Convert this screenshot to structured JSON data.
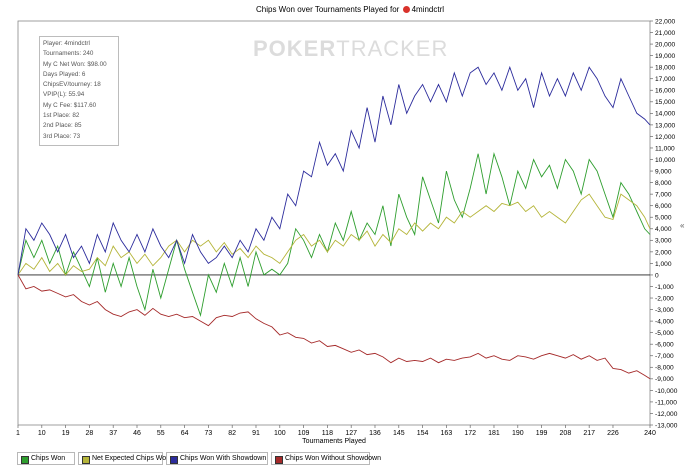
{
  "title": {
    "text": "Chips Won over Tournaments Played for",
    "player": "4mindctrl"
  },
  "watermark": {
    "left": "POKER",
    "right": "TRACKER"
  },
  "stats_box": [
    "Player: 4mindctrl",
    "Tournaments: 240",
    "My C Net Won: $98.00",
    "Days Played: 6",
    "ChipsEV/tourney: 18",
    "VPIP(L): 55.94",
    "My C Fee: $117.60",
    "1st Place: 82",
    "2nd Place: 85",
    "3rd Place: 73"
  ],
  "side_mark": "«",
  "legend": [
    {
      "label": "Chips Won",
      "color": "#2e9e2e"
    },
    {
      "label": "Net Expected Chips Won",
      "color": "#b5b53a"
    },
    {
      "label": "Chips Won With Showdown",
      "color": "#2c2c9c"
    },
    {
      "label": "Chips Won Without Showdown",
      "color": "#a52a2a"
    }
  ],
  "chart_data": {
    "type": "line",
    "title": "Chips Won over Tournaments Played for 4mindctrl",
    "xlabel": "Tournaments Played",
    "ylabel": "",
    "xlim": [
      1,
      240
    ],
    "ylim": [
      -13000,
      22000
    ],
    "x_ticks": [
      1,
      10,
      19,
      28,
      37,
      46,
      55,
      64,
      73,
      82,
      91,
      100,
      109,
      118,
      127,
      136,
      145,
      154,
      163,
      172,
      181,
      190,
      199,
      208,
      217,
      226,
      240
    ],
    "y_ticks": [
      -13000,
      -12000,
      -11000,
      -10000,
      -9000,
      -8000,
      -7000,
      -6000,
      -5000,
      -4000,
      -3000,
      -2000,
      -1000,
      0,
      1000,
      2000,
      3000,
      4000,
      5000,
      6000,
      7000,
      8000,
      9000,
      10000,
      11000,
      12000,
      13000,
      14000,
      15000,
      16000,
      17000,
      18000,
      19000,
      20000,
      21000,
      22000
    ],
    "y_tick_labels": [
      "-13,000",
      "-12,000",
      "-11,000",
      "-10,000",
      "-9,000",
      "-8,000",
      "-7,000",
      "-6,000",
      "-5,000",
      "-4,000",
      "-3,000",
      "-2,000",
      "-1,000",
      "0",
      "1,000",
      "2,000",
      "3,000",
      "4,000",
      "5,000",
      "6,000",
      "7,000",
      "8,000",
      "9,000",
      "10,000",
      "11,000",
      "12,000",
      "13,000",
      "14,000",
      "15,000",
      "16,000",
      "17,000",
      "18,000",
      "19,000",
      "20,000",
      "21,000",
      "22,000"
    ],
    "grid": false,
    "legend_position": "bottom",
    "series": [
      {
        "name": "Chips Won",
        "color": "#2e9e2e",
        "x": [
          1,
          4,
          7,
          10,
          13,
          16,
          19,
          22,
          25,
          28,
          31,
          34,
          37,
          40,
          43,
          46,
          49,
          52,
          55,
          58,
          61,
          64,
          67,
          70,
          73,
          76,
          79,
          82,
          85,
          88,
          91,
          94,
          97,
          100,
          103,
          106,
          109,
          112,
          115,
          118,
          121,
          124,
          127,
          130,
          133,
          136,
          139,
          142,
          145,
          148,
          151,
          154,
          157,
          160,
          163,
          166,
          169,
          172,
          175,
          178,
          181,
          184,
          187,
          190,
          193,
          196,
          199,
          202,
          205,
          208,
          211,
          214,
          217,
          220,
          223,
          226,
          229,
          232,
          235,
          238,
          240
        ],
        "y": [
          0,
          3000,
          1500,
          3000,
          1000,
          2500,
          0,
          2000,
          500,
          -1000,
          1500,
          -1500,
          1000,
          -1000,
          1500,
          -1000,
          -3000,
          500,
          -2000,
          500,
          3000,
          500,
          -1500,
          -3500,
          0,
          -1500,
          1000,
          -1000,
          1500,
          -1000,
          2000,
          0,
          500,
          0,
          1000,
          4000,
          3000,
          1500,
          3500,
          2000,
          4500,
          3000,
          5500,
          3000,
          4500,
          3500,
          6000,
          2500,
          7000,
          5000,
          3500,
          8500,
          6500,
          4500,
          9000,
          6500,
          5000,
          7500,
          10500,
          7000,
          10500,
          8500,
          6000,
          9000,
          7500,
          10000,
          8500,
          9500,
          7500,
          10000,
          9000,
          7000,
          10000,
          9000,
          7000,
          5000,
          8000,
          7000,
          5500,
          4000,
          3500
        ]
      },
      {
        "name": "Net Expected Chips Won",
        "color": "#b5b53a",
        "x": [
          1,
          4,
          7,
          10,
          13,
          16,
          19,
          22,
          25,
          28,
          31,
          34,
          37,
          40,
          43,
          46,
          49,
          52,
          55,
          58,
          61,
          64,
          67,
          70,
          73,
          76,
          79,
          82,
          85,
          88,
          91,
          94,
          97,
          100,
          103,
          106,
          109,
          112,
          115,
          118,
          121,
          124,
          127,
          130,
          133,
          136,
          139,
          142,
          145,
          148,
          151,
          154,
          157,
          160,
          163,
          166,
          169,
          172,
          175,
          178,
          181,
          184,
          187,
          190,
          193,
          196,
          199,
          202,
          205,
          208,
          211,
          214,
          217,
          220,
          223,
          226,
          229,
          232,
          235,
          238,
          240
        ],
        "y": [
          0,
          1000,
          500,
          1500,
          300,
          1000,
          0,
          800,
          300,
          500,
          1500,
          800,
          2500,
          1500,
          2000,
          1000,
          1800,
          800,
          1500,
          2500,
          3000,
          2000,
          3000,
          2500,
          3000,
          2000,
          2800,
          1800,
          2300,
          1500,
          2500,
          1800,
          1500,
          1000,
          2000,
          3000,
          3500,
          2500,
          3000,
          2000,
          3000,
          2500,
          3500,
          3000,
          3800,
          2500,
          3500,
          2800,
          4000,
          3500,
          4500,
          3800,
          4500,
          4000,
          5000,
          4500,
          5500,
          5000,
          5500,
          6000,
          5500,
          6200,
          6000,
          6300,
          5500,
          6000,
          5000,
          5500,
          5000,
          4500,
          5500,
          6500,
          7000,
          6000,
          5000,
          4800,
          7000,
          6500,
          6000,
          5000,
          4000
        ]
      },
      {
        "name": "Chips Won With Showdown",
        "color": "#2c2c9c",
        "x": [
          1,
          4,
          7,
          10,
          13,
          16,
          19,
          22,
          25,
          28,
          31,
          34,
          37,
          40,
          43,
          46,
          49,
          52,
          55,
          58,
          61,
          64,
          67,
          70,
          73,
          76,
          79,
          82,
          85,
          88,
          91,
          94,
          97,
          100,
          103,
          106,
          109,
          112,
          115,
          118,
          121,
          124,
          127,
          130,
          133,
          136,
          139,
          142,
          145,
          148,
          151,
          154,
          157,
          160,
          163,
          166,
          169,
          172,
          175,
          178,
          181,
          184,
          187,
          190,
          193,
          196,
          199,
          202,
          205,
          208,
          211,
          214,
          217,
          220,
          223,
          226,
          229,
          232,
          235,
          238,
          240
        ],
        "y": [
          0,
          4000,
          3000,
          4500,
          3500,
          2000,
          3500,
          1500,
          2500,
          1000,
          3500,
          2000,
          4500,
          3000,
          2000,
          3500,
          2000,
          4000,
          2500,
          1500,
          3000,
          1000,
          3500,
          2000,
          1000,
          1500,
          2500,
          1500,
          3000,
          2000,
          4000,
          3000,
          5000,
          4000,
          7000,
          6000,
          9000,
          8500,
          11500,
          9500,
          10500,
          9000,
          12500,
          11000,
          14500,
          11500,
          15500,
          13000,
          16500,
          14000,
          15500,
          16500,
          15000,
          16500,
          15000,
          17500,
          15500,
          17500,
          18000,
          16500,
          17500,
          16000,
          18000,
          16000,
          17000,
          14500,
          17500,
          15500,
          17000,
          15500,
          17500,
          16000,
          18000,
          17000,
          15500,
          14500,
          17000,
          15500,
          14000,
          13500,
          13000
        ]
      },
      {
        "name": "Chips Won Without Showdown",
        "color": "#a52a2a",
        "x": [
          1,
          4,
          7,
          10,
          13,
          16,
          19,
          22,
          25,
          28,
          31,
          34,
          37,
          40,
          43,
          46,
          49,
          52,
          55,
          58,
          61,
          64,
          67,
          70,
          73,
          76,
          79,
          82,
          85,
          88,
          91,
          94,
          97,
          100,
          103,
          106,
          109,
          112,
          115,
          118,
          121,
          124,
          127,
          130,
          133,
          136,
          139,
          142,
          145,
          148,
          151,
          154,
          157,
          160,
          163,
          166,
          169,
          172,
          175,
          178,
          181,
          184,
          187,
          190,
          193,
          196,
          199,
          202,
          205,
          208,
          211,
          214,
          217,
          220,
          223,
          226,
          229,
          232,
          235,
          238,
          240
        ],
        "y": [
          0,
          -1200,
          -1000,
          -1400,
          -1300,
          -1600,
          -1900,
          -1700,
          -2300,
          -2600,
          -2300,
          -3000,
          -3400,
          -3600,
          -3200,
          -3000,
          -3500,
          -2900,
          -3400,
          -3600,
          -3400,
          -3700,
          -3600,
          -4000,
          -4400,
          -3700,
          -3500,
          -3600,
          -3300,
          -3200,
          -3800,
          -4200,
          -4500,
          -5200,
          -5000,
          -5400,
          -5500,
          -5900,
          -5700,
          -6200,
          -6100,
          -6400,
          -6700,
          -6500,
          -6900,
          -6800,
          -7100,
          -7600,
          -7200,
          -7500,
          -7400,
          -7500,
          -7200,
          -7600,
          -7300,
          -7400,
          -7200,
          -7100,
          -6800,
          -7200,
          -7000,
          -7300,
          -7400,
          -7000,
          -7100,
          -7300,
          -7000,
          -6800,
          -7000,
          -7200,
          -6900,
          -7300,
          -7000,
          -7400,
          -7200,
          -8100,
          -8200,
          -8500,
          -8300,
          -8700,
          -9000
        ]
      }
    ]
  }
}
